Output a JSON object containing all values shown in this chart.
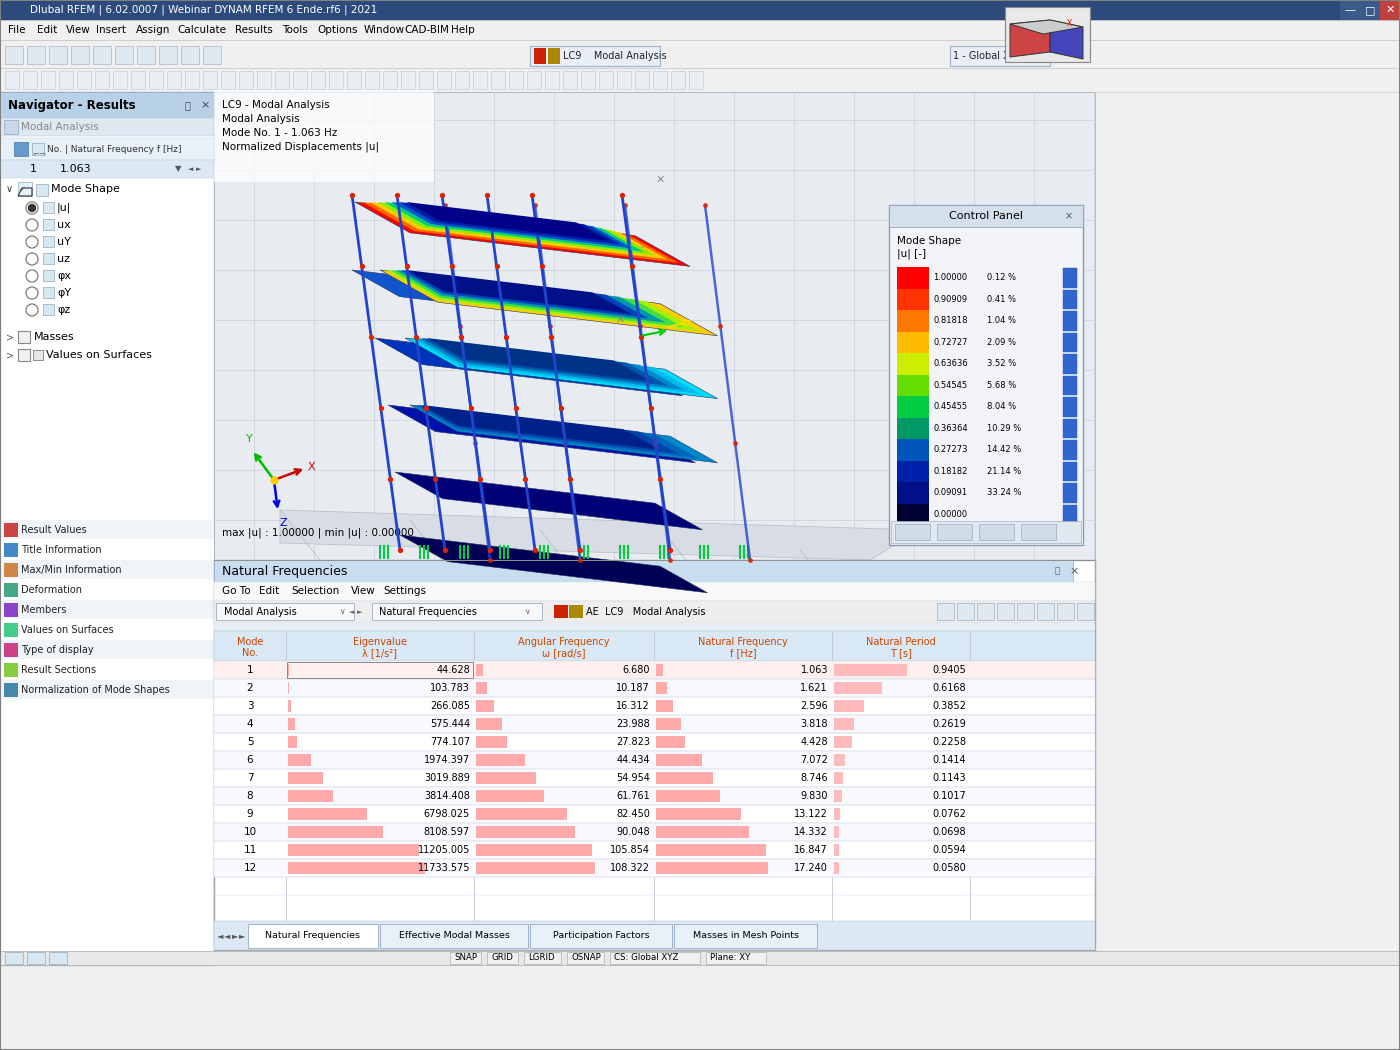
{
  "title": "Dlubal RFEM | 6.02.0007 | Webinar DYNAM RFEM 6 Ende.rf6 | 2021",
  "nav_title": "Navigator - Results",
  "modal_analysis_label": "Modal Analysis",
  "mode1_no": "1",
  "mode1_freq": "1.063",
  "table_title": "Natural Frequencies",
  "table_menu": [
    "Go To",
    "Edit",
    "Selection",
    "View",
    "Settings"
  ],
  "col_headers_line1": [
    "Mode",
    "Eigenvalue",
    "Angular Frequency",
    "Natural Frequency",
    "Natural Period"
  ],
  "col_headers_line2": [
    "No.",
    "λ [1/s²]",
    "ω [rad/s]",
    "f [Hz]",
    "T [s]"
  ],
  "table_data": [
    [
      1,
      44.628,
      6.68,
      1.063,
      0.9405
    ],
    [
      2,
      103.783,
      10.187,
      1.621,
      0.6168
    ],
    [
      3,
      266.085,
      16.312,
      2.596,
      0.3852
    ],
    [
      4,
      575.444,
      23.988,
      3.818,
      0.2619
    ],
    [
      5,
      774.107,
      27.823,
      4.428,
      0.2258
    ],
    [
      6,
      1974.397,
      44.434,
      7.072,
      0.1414
    ],
    [
      7,
      3019.889,
      54.954,
      8.746,
      0.1143
    ],
    [
      8,
      3814.408,
      61.761,
      9.83,
      0.1017
    ],
    [
      9,
      6798.025,
      82.45,
      13.122,
      0.0762
    ],
    [
      10,
      8108.597,
      90.048,
      14.332,
      0.0698
    ],
    [
      11,
      11205.005,
      105.854,
      16.847,
      0.0594
    ],
    [
      12,
      11733.575,
      108.322,
      17.24,
      0.058
    ]
  ],
  "colorbar_values": [
    "1.00000",
    "0.90909",
    "0.81818",
    "0.72727",
    "0.63636",
    "0.54545",
    "0.45455",
    "0.36364",
    "0.27273",
    "0.18182",
    "0.09091",
    "0.00000"
  ],
  "colorbar_percents": [
    "0.12 %",
    "0.41 %",
    "1.04 %",
    "2.09 %",
    "3.52 %",
    "5.68 %",
    "8.04 %",
    "10.29 %",
    "14.42 %",
    "21.14 %",
    "33.24 %",
    ""
  ],
  "colorbar_colors": [
    "#ff0000",
    "#ff3300",
    "#ff7700",
    "#ffbb00",
    "#ccee00",
    "#66dd00",
    "#00cc44",
    "#009966",
    "#0055bb",
    "#0022aa",
    "#001188",
    "#000033"
  ],
  "tab_labels": [
    "Natural Frequencies",
    "Effective Modal Masses",
    "Participation Factors",
    "Masses in Mesh Points"
  ],
  "status_items": [
    "SNAP",
    "GRID",
    "LGRID",
    "OSNAP",
    "CS: Global XYZ",
    "Plane: XY"
  ],
  "mode_info1": "LC9 - Modal Analysis",
  "mode_info2": "Modal Analysis",
  "mode_info3": "Mode No. 1 - 1.063 Hz",
  "mode_info4": "Normalized Displacements |u|",
  "nav_items_radio": [
    "|u|",
    "ux",
    "uY",
    "uz",
    "φx",
    "φY",
    "φz"
  ],
  "left_panel_items": [
    "Result Values",
    "Title Information",
    "Max/Min Information",
    "Deformation",
    "Members",
    "Values on Surfaces",
    "Type of display",
    "Result Sections",
    "Normalization of Mode Shapes"
  ],
  "viewer_bg": "#e8ecf0",
  "grid_color": "#c8d0d8",
  "title_bar_color": "#2c4a7c",
  "nav_header_color": "#b8d0e8",
  "table_header_bg": "#d8e8f4",
  "row1_bg": "#fff0f0",
  "row_alt_bg": "#f8fbff",
  "row_even_bg": "#ffffff",
  "col_divider": "#c0c8d4",
  "bar_color": "#ffaaaa",
  "bar_color_period": "#ffbbbb",
  "cp_bg": "#f2f4f8",
  "cp_header_bg": "#d4e0ec"
}
